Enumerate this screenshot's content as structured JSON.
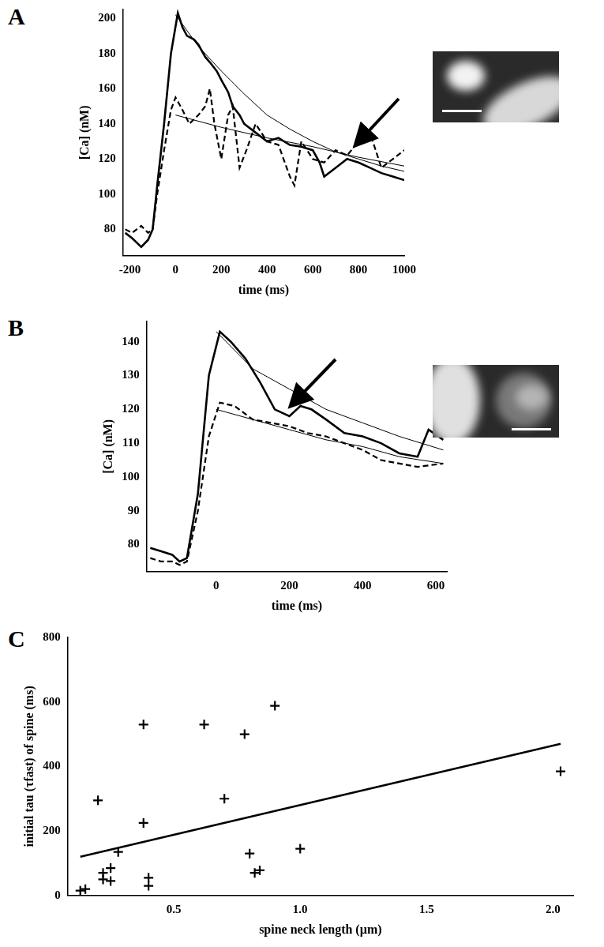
{
  "chart_data": [
    {
      "type": "line",
      "title": "A",
      "xlabel": "time (ms)",
      "ylabel": "[Ca] (nM)",
      "xlim": [
        -230,
        1000
      ],
      "xticks": [
        -200,
        0,
        200,
        400,
        600,
        800,
        1000
      ],
      "ylim": [
        65,
        205
      ],
      "yticks": [
        80,
        100,
        120,
        140,
        160,
        180,
        200
      ],
      "grid": false,
      "series": [
        {
          "color": "#000000",
          "line_style": "solid",
          "x": [
            -220,
            -190,
            -150,
            -120,
            -100,
            -80,
            -50,
            -20,
            10,
            30,
            50,
            80,
            100,
            130,
            150,
            180,
            200,
            230,
            250,
            280,
            300,
            350,
            400,
            450,
            500,
            550,
            600,
            630,
            650,
            700,
            750,
            800,
            850,
            900,
            950,
            1000
          ],
          "values": [
            78,
            75,
            70,
            74,
            80,
            105,
            140,
            180,
            203,
            195,
            190,
            188,
            185,
            178,
            175,
            170,
            165,
            158,
            150,
            145,
            140,
            135,
            130,
            132,
            128,
            127,
            125,
            118,
            110,
            115,
            120,
            118,
            115,
            112,
            110,
            108
          ]
        },
        {
          "color": "#000000",
          "line_style": "dashed",
          "x": [
            -220,
            -190,
            -150,
            -120,
            -100,
            -80,
            -50,
            -20,
            0,
            30,
            60,
            100,
            130,
            150,
            170,
            200,
            230,
            250,
            280,
            310,
            350,
            400,
            450,
            500,
            520,
            550,
            600,
            650,
            700,
            750,
            800,
            850,
            900,
            950,
            1000
          ],
          "values": [
            80,
            78,
            82,
            78,
            80,
            100,
            125,
            148,
            155,
            148,
            140,
            145,
            150,
            160,
            140,
            120,
            145,
            150,
            115,
            125,
            140,
            130,
            128,
            110,
            105,
            130,
            120,
            118,
            125,
            122,
            130,
            135,
            115,
            120,
            125
          ]
        },
        {
          "color": "#000000",
          "line_style": "thin",
          "x": [
            0,
            100,
            200,
            300,
            400,
            500,
            600,
            700,
            800,
            900,
            1000
          ],
          "values": [
            202,
            184,
            170,
            157,
            145,
            137,
            130,
            124,
            120,
            116,
            113
          ]
        },
        {
          "color": "#000000",
          "line_style": "thin",
          "x": [
            0,
            200,
            400,
            600,
            800,
            1000
          ],
          "values": [
            145,
            138,
            132,
            127,
            121,
            116
          ]
        }
      ]
    },
    {
      "type": "line",
      "title": "B",
      "xlabel": "time (ms)",
      "ylabel": "[Ca] (nM)",
      "xlim": [
        -190,
        630
      ],
      "xticks": [
        0,
        200,
        400,
        600
      ],
      "ylim": [
        72,
        146
      ],
      "yticks": [
        80,
        90,
        100,
        110,
        120,
        130,
        140
      ],
      "grid": false,
      "series": [
        {
          "color": "#000000",
          "line_style": "solid",
          "x": [
            -180,
            -150,
            -120,
            -100,
            -80,
            -50,
            -20,
            10,
            40,
            80,
            120,
            160,
            200,
            230,
            260,
            300,
            350,
            400,
            450,
            500,
            550,
            580,
            620
          ],
          "values": [
            79,
            78,
            77,
            75,
            76,
            95,
            130,
            143,
            140,
            135,
            128,
            120,
            118,
            121,
            120,
            117,
            113,
            112,
            110,
            107,
            106,
            114,
            111
          ]
        },
        {
          "color": "#000000",
          "line_style": "dashed",
          "x": [
            -180,
            -150,
            -120,
            -100,
            -80,
            -50,
            -20,
            10,
            50,
            100,
            150,
            200,
            250,
            300,
            350,
            400,
            450,
            500,
            550,
            620
          ],
          "values": [
            76,
            75,
            75,
            74,
            75,
            90,
            112,
            122,
            121,
            117,
            116,
            115,
            113,
            112,
            110,
            108,
            105,
            104,
            103,
            104
          ]
        },
        {
          "color": "#000000",
          "line_style": "thin",
          "x": [
            0,
            100,
            200,
            300,
            400,
            500,
            620
          ],
          "values": [
            143,
            132,
            126,
            120,
            116,
            112,
            108
          ]
        },
        {
          "color": "#000000",
          "line_style": "thin",
          "x": [
            0,
            100,
            200,
            300,
            400,
            500,
            620
          ],
          "values": [
            120,
            117,
            114,
            111,
            109,
            106,
            104
          ]
        }
      ]
    },
    {
      "type": "scatter",
      "title": "C",
      "xlabel": "spine neck length (µm)",
      "ylabel": "initial tau (τfast) of spine (ms)",
      "xlim": [
        0.08,
        2.08
      ],
      "xticks": [
        {
          "value": 0.5,
          "label": "0.5"
        },
        {
          "value": 1,
          "label": "1.0"
        },
        {
          "value": 1.5,
          "label": "1.5"
        },
        {
          "value": 2,
          "label": "2.0"
        }
      ],
      "ylim": [
        0,
        800
      ],
      "yticks": [
        0,
        200,
        400,
        600,
        800
      ],
      "grid": false,
      "series": [
        {
          "type": "scatter",
          "marker": "cross",
          "color": "#000000",
          "x": [
            0.13,
            0.15,
            0.2,
            0.22,
            0.22,
            0.25,
            0.25,
            0.28,
            0.38,
            0.38,
            0.4,
            0.4,
            0.62,
            0.7,
            0.78,
            0.8,
            0.82,
            0.84,
            0.9,
            1.0,
            2.03
          ],
          "values": [
            15,
            20,
            295,
            70,
            50,
            85,
            45,
            135,
            530,
            225,
            55,
            30,
            530,
            300,
            500,
            130,
            70,
            78,
            588,
            145,
            385
          ]
        },
        {
          "type": "line",
          "line_style": "solid",
          "color": "#000000",
          "x": [
            0.13,
            2.03
          ],
          "values": [
            120,
            470
          ]
        }
      ]
    }
  ]
}
